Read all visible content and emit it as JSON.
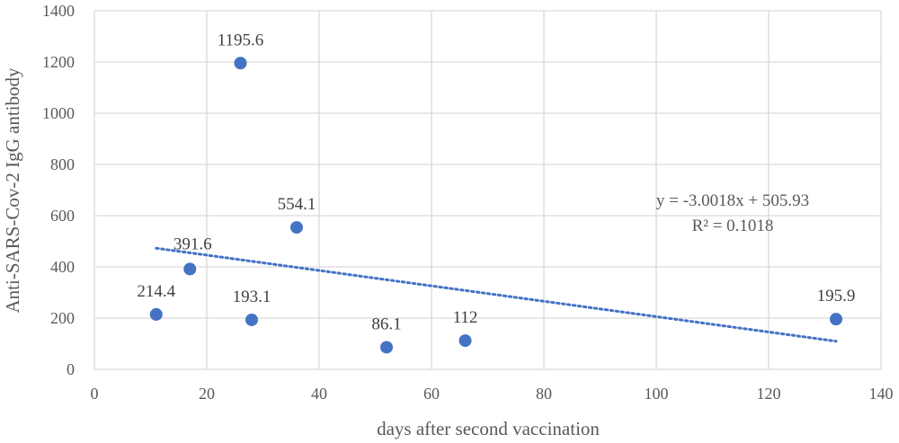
{
  "chart_data": {
    "type": "scatter",
    "xlabel": "days after second vaccination",
    "ylabel": "Anti-SARS-Cov-2 IgG antibody",
    "xlim": [
      0,
      140
    ],
    "ylim": [
      0,
      1400
    ],
    "x_ticks": [
      0,
      20,
      40,
      60,
      80,
      100,
      120,
      140
    ],
    "y_ticks": [
      0,
      200,
      400,
      600,
      800,
      1000,
      1200,
      1400
    ],
    "grid": true,
    "marker_color": "#4472c4",
    "trendline_color": "#4472c4",
    "points": [
      {
        "x": 11,
        "y": 214.4,
        "label": "214.4"
      },
      {
        "x": 17,
        "y": 391.6,
        "label": "391.6"
      },
      {
        "x": 26,
        "y": 1195.6,
        "label": "1195.6"
      },
      {
        "x": 28,
        "y": 193.1,
        "label": "193.1"
      },
      {
        "x": 36,
        "y": 554.1,
        "label": "554.1"
      },
      {
        "x": 52,
        "y": 86.1,
        "label": "86.1"
      },
      {
        "x": 66,
        "y": 112,
        "label": "112"
      },
      {
        "x": 132,
        "y": 195.9,
        "label": "195.9"
      }
    ],
    "trendline": {
      "type": "linear",
      "slope": -3.0018,
      "intercept": 505.93,
      "x_range": [
        11,
        132
      ],
      "equation": "y = -3.0018x + 505.93",
      "r_squared": "R² = 0.1018"
    }
  }
}
